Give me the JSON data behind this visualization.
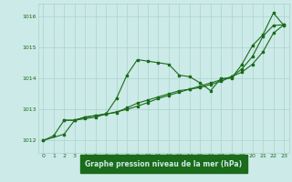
{
  "title": "Graphe pression niveau de la mer (hPa)",
  "background_color": "#cceae7",
  "plot_bg_color": "#cceae7",
  "grid_color": "#aad4d0",
  "line_color": "#1a6b1a",
  "xlabel_bg": "#1a6b1a",
  "xlabel_fg": "#cceae7",
  "xlim": [
    -0.5,
    23.5
  ],
  "ylim": [
    1011.6,
    1016.4
  ],
  "yticks": [
    1012,
    1013,
    1014,
    1015,
    1016
  ],
  "xticks": [
    0,
    1,
    2,
    3,
    4,
    5,
    6,
    7,
    8,
    9,
    10,
    11,
    12,
    13,
    14,
    15,
    16,
    17,
    18,
    19,
    20,
    21,
    22,
    23
  ],
  "line1_x": [
    0,
    2,
    3,
    4,
    5,
    6,
    7,
    8,
    9,
    10,
    11,
    12,
    13,
    14,
    15,
    16,
    17,
    18,
    19,
    20,
    21,
    22,
    23
  ],
  "line1_y": [
    1012.0,
    1012.2,
    1012.65,
    1012.7,
    1012.75,
    1012.85,
    1013.35,
    1014.1,
    1014.6,
    1014.55,
    1014.5,
    1014.45,
    1014.1,
    1014.05,
    1013.85,
    1013.6,
    1014.0,
    1014.0,
    1014.45,
    1015.05,
    1015.4,
    1016.1,
    1015.7
  ],
  "line2_x": [
    0,
    1,
    2,
    3,
    4,
    5,
    6,
    7,
    8,
    9,
    10,
    11,
    12,
    13,
    14,
    15,
    16,
    17,
    18,
    19,
    20,
    21,
    22,
    23
  ],
  "line2_y": [
    1012.0,
    1012.15,
    1012.65,
    1012.65,
    1012.75,
    1012.8,
    1012.85,
    1012.9,
    1013.05,
    1013.2,
    1013.3,
    1013.4,
    1013.5,
    1013.6,
    1013.65,
    1013.7,
    1013.8,
    1013.9,
    1014.05,
    1014.3,
    1014.7,
    1015.35,
    1015.7,
    1015.72
  ],
  "line3_x": [
    2,
    3,
    4,
    5,
    6,
    7,
    8,
    9,
    10,
    11,
    12,
    13,
    14,
    15,
    16,
    17,
    18,
    19,
    20,
    21,
    22,
    23
  ],
  "line3_y": [
    1012.65,
    1012.65,
    1012.75,
    1012.8,
    1012.85,
    1012.92,
    1013.0,
    1013.1,
    1013.22,
    1013.35,
    1013.45,
    1013.55,
    1013.65,
    1013.75,
    1013.85,
    1013.95,
    1014.05,
    1014.2,
    1014.45,
    1014.85,
    1015.45,
    1015.72
  ]
}
